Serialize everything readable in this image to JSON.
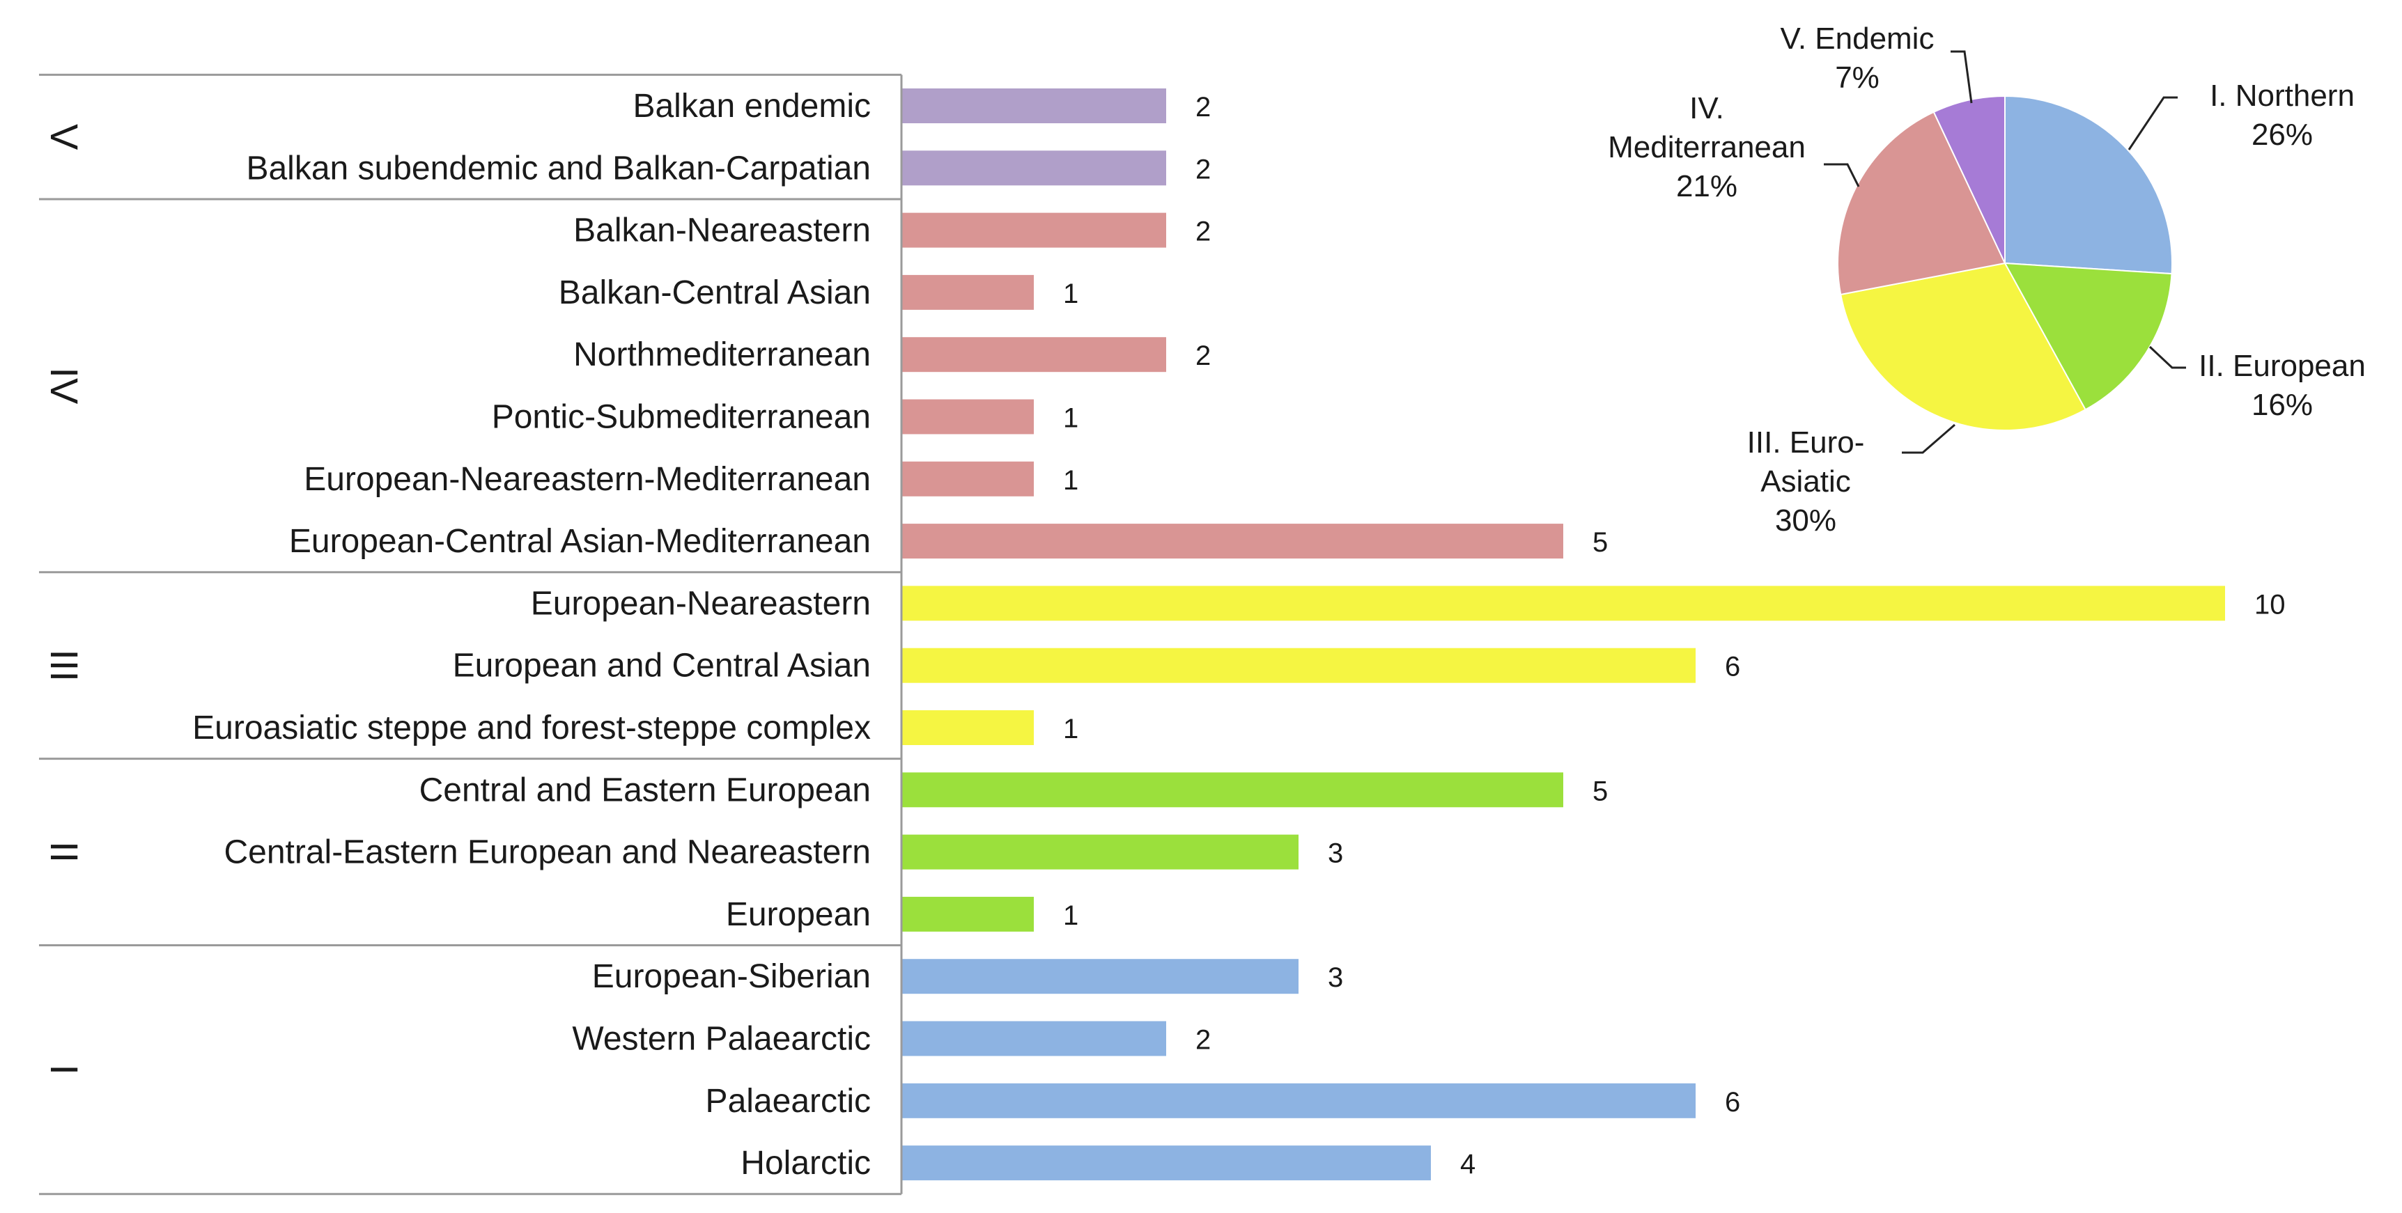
{
  "chart_data": [
    {
      "type": "bar",
      "orientation": "horizontal",
      "title": "",
      "xlabel": "",
      "ylabel": "",
      "xlim": [
        0,
        10
      ],
      "grid": false,
      "groups": [
        {
          "label": "V",
          "color": "#b09fc9",
          "categories": [
            "Balkan endemic",
            "Balkan subendemic and Balkan-Carpatian"
          ],
          "values": [
            2,
            2
          ]
        },
        {
          "label": "IV",
          "color": "#d99594",
          "categories": [
            "Balkan-Neareastern",
            "Balkan-Central Asian",
            "Northmediterranean",
            "Pontic-Submediterranean",
            "European-Neareastern-Mediterranean",
            "European-Central Asian-Mediterranean"
          ],
          "values": [
            2,
            1,
            2,
            1,
            1,
            5
          ]
        },
        {
          "label": "III",
          "color": "#f5f542",
          "categories": [
            "European-Neareastern",
            "European and Central Asian",
            "Euroasiatic steppe and forest-steppe complex"
          ],
          "values": [
            10,
            6,
            1
          ]
        },
        {
          "label": "II",
          "color": "#9be03c",
          "categories": [
            "Central and Eastern European",
            "Central-Eastern European and Neareastern",
            "European"
          ],
          "values": [
            5,
            3,
            1
          ]
        },
        {
          "label": "I",
          "color": "#8db3e2",
          "categories": [
            "European-Siberian",
            "Western Palaearctic",
            "Palaearctic",
            "Holarctic"
          ],
          "values": [
            3,
            2,
            6,
            4
          ]
        }
      ]
    },
    {
      "type": "pie",
      "title": "",
      "slices": [
        {
          "name_lines": [
            "I. Northern"
          ],
          "percent_label": "26%",
          "value": 26,
          "color": "#8db3e2"
        },
        {
          "name_lines": [
            "II. European"
          ],
          "percent_label": "16%",
          "value": 16,
          "color": "#9be03c"
        },
        {
          "name_lines": [
            "III. Euro-",
            "Asiatic"
          ],
          "percent_label": "30%",
          "value": 30,
          "color": "#f5f542"
        },
        {
          "name_lines": [
            "IV.",
            "Mediterranean"
          ],
          "percent_label": "21%",
          "value": 21,
          "color": "#d99594"
        },
        {
          "name_lines": [
            "V. Endemic"
          ],
          "percent_label": "7%",
          "value": 7,
          "color": "#a67bd6"
        }
      ]
    }
  ]
}
